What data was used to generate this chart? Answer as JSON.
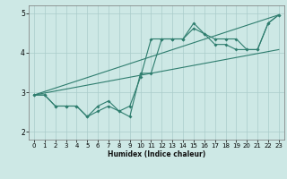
{
  "bg_color": "#cde8e5",
  "grid_color": "#aaccca",
  "line_color": "#2e7d6e",
  "xlabel": "Humidex (Indice chaleur)",
  "ylim": [
    1.8,
    5.2
  ],
  "xlim": [
    -0.5,
    23.5
  ],
  "yticks": [
    2,
    3,
    4,
    5
  ],
  "xticks": [
    0,
    1,
    2,
    3,
    4,
    5,
    6,
    7,
    8,
    9,
    10,
    11,
    12,
    13,
    14,
    15,
    16,
    17,
    18,
    19,
    20,
    21,
    22,
    23
  ],
  "series1_x": [
    0,
    1,
    2,
    3,
    4,
    5,
    6,
    7,
    8,
    9,
    10,
    11,
    12,
    13,
    14,
    15,
    16,
    17,
    18,
    19,
    20,
    21,
    22,
    23
  ],
  "series1_y": [
    2.93,
    2.93,
    2.65,
    2.65,
    2.65,
    2.38,
    2.52,
    2.65,
    2.52,
    2.65,
    3.38,
    4.35,
    4.35,
    4.35,
    4.35,
    4.62,
    4.48,
    4.35,
    4.35,
    4.35,
    4.08,
    4.08,
    4.75,
    4.96
  ],
  "series2_x": [
    0,
    1,
    2,
    3,
    4,
    5,
    6,
    7,
    8,
    9,
    10,
    11,
    12,
    13,
    14,
    15,
    16,
    17,
    18,
    19,
    20,
    21,
    22,
    23
  ],
  "series2_y": [
    2.93,
    2.93,
    2.65,
    2.65,
    2.65,
    2.38,
    2.65,
    2.78,
    2.52,
    2.38,
    3.48,
    3.48,
    4.35,
    4.35,
    4.35,
    4.75,
    4.48,
    4.21,
    4.21,
    4.08,
    4.08,
    4.08,
    4.75,
    4.96
  ],
  "series3_x": [
    0,
    23
  ],
  "series3_y": [
    2.93,
    4.96
  ],
  "series4_x": [
    0,
    23
  ],
  "series4_y": [
    2.93,
    4.08
  ],
  "xlabel_fontsize": 5.5,
  "tick_fontsize": 5.0
}
